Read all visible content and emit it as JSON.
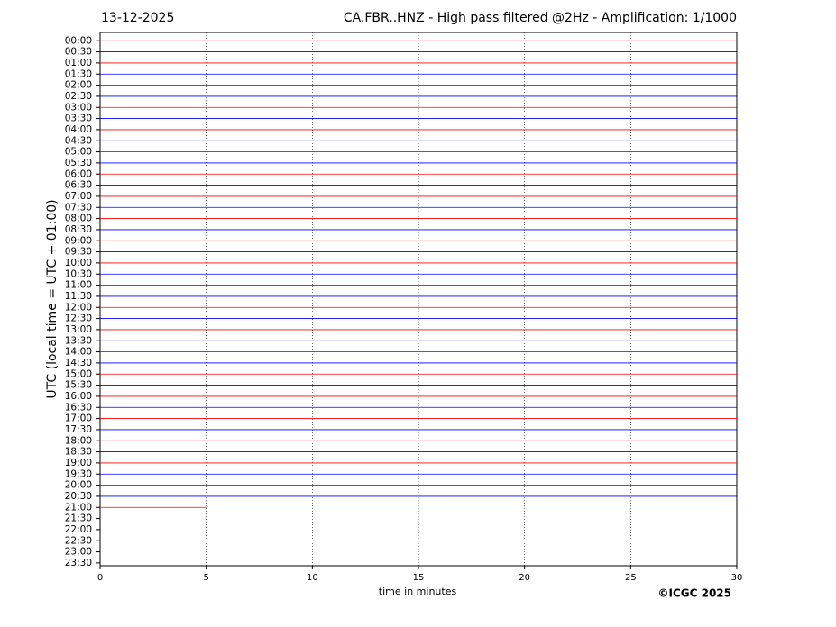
{
  "chart_data": {
    "type": "helicorder",
    "date": "13-12-2025",
    "title": "CA.FBR..HNZ - High pass filtered @2Hz - Amplification: 1/1000",
    "y_label": "UTC (local time = UTC + 01:00)",
    "x_label": "time in minutes",
    "credit": "©ICGC 2025",
    "categories": [
      "00:00",
      "00:30",
      "01:00",
      "01:30",
      "02:00",
      "02:30",
      "03:00",
      "03:30",
      "04:00",
      "04:30",
      "05:00",
      "05:30",
      "06:00",
      "06:30",
      "07:00",
      "07:30",
      "08:00",
      "08:30",
      "09:00",
      "09:30",
      "10:00",
      "10:30",
      "11:00",
      "11:30",
      "12:00",
      "12:30",
      "13:00",
      "13:30",
      "14:00",
      "14:30",
      "15:00",
      "15:30",
      "16:00",
      "16:30",
      "17:00",
      "17:30",
      "18:00",
      "18:30",
      "19:00",
      "19:30",
      "20:00",
      "20:30",
      "21:00",
      "21:30",
      "22:00",
      "22:30",
      "23:00",
      "23:30"
    ],
    "trace_end": [
      30,
      30,
      30,
      30,
      30,
      30,
      30,
      30,
      30,
      30,
      30,
      30,
      30,
      30,
      30,
      30,
      30,
      30,
      30,
      30,
      30,
      30,
      30,
      30,
      30,
      30,
      30,
      30,
      30,
      30,
      30,
      30,
      30,
      30,
      30,
      30,
      30,
      30,
      30,
      30,
      30,
      30,
      5,
      null,
      null,
      null,
      null,
      null
    ],
    "colors": [
      "#ff0000",
      "#0000ff"
    ],
    "xlim": [
      0,
      30
    ],
    "xticks": [
      0,
      5,
      10,
      15,
      20,
      25,
      30
    ],
    "grid": true
  }
}
